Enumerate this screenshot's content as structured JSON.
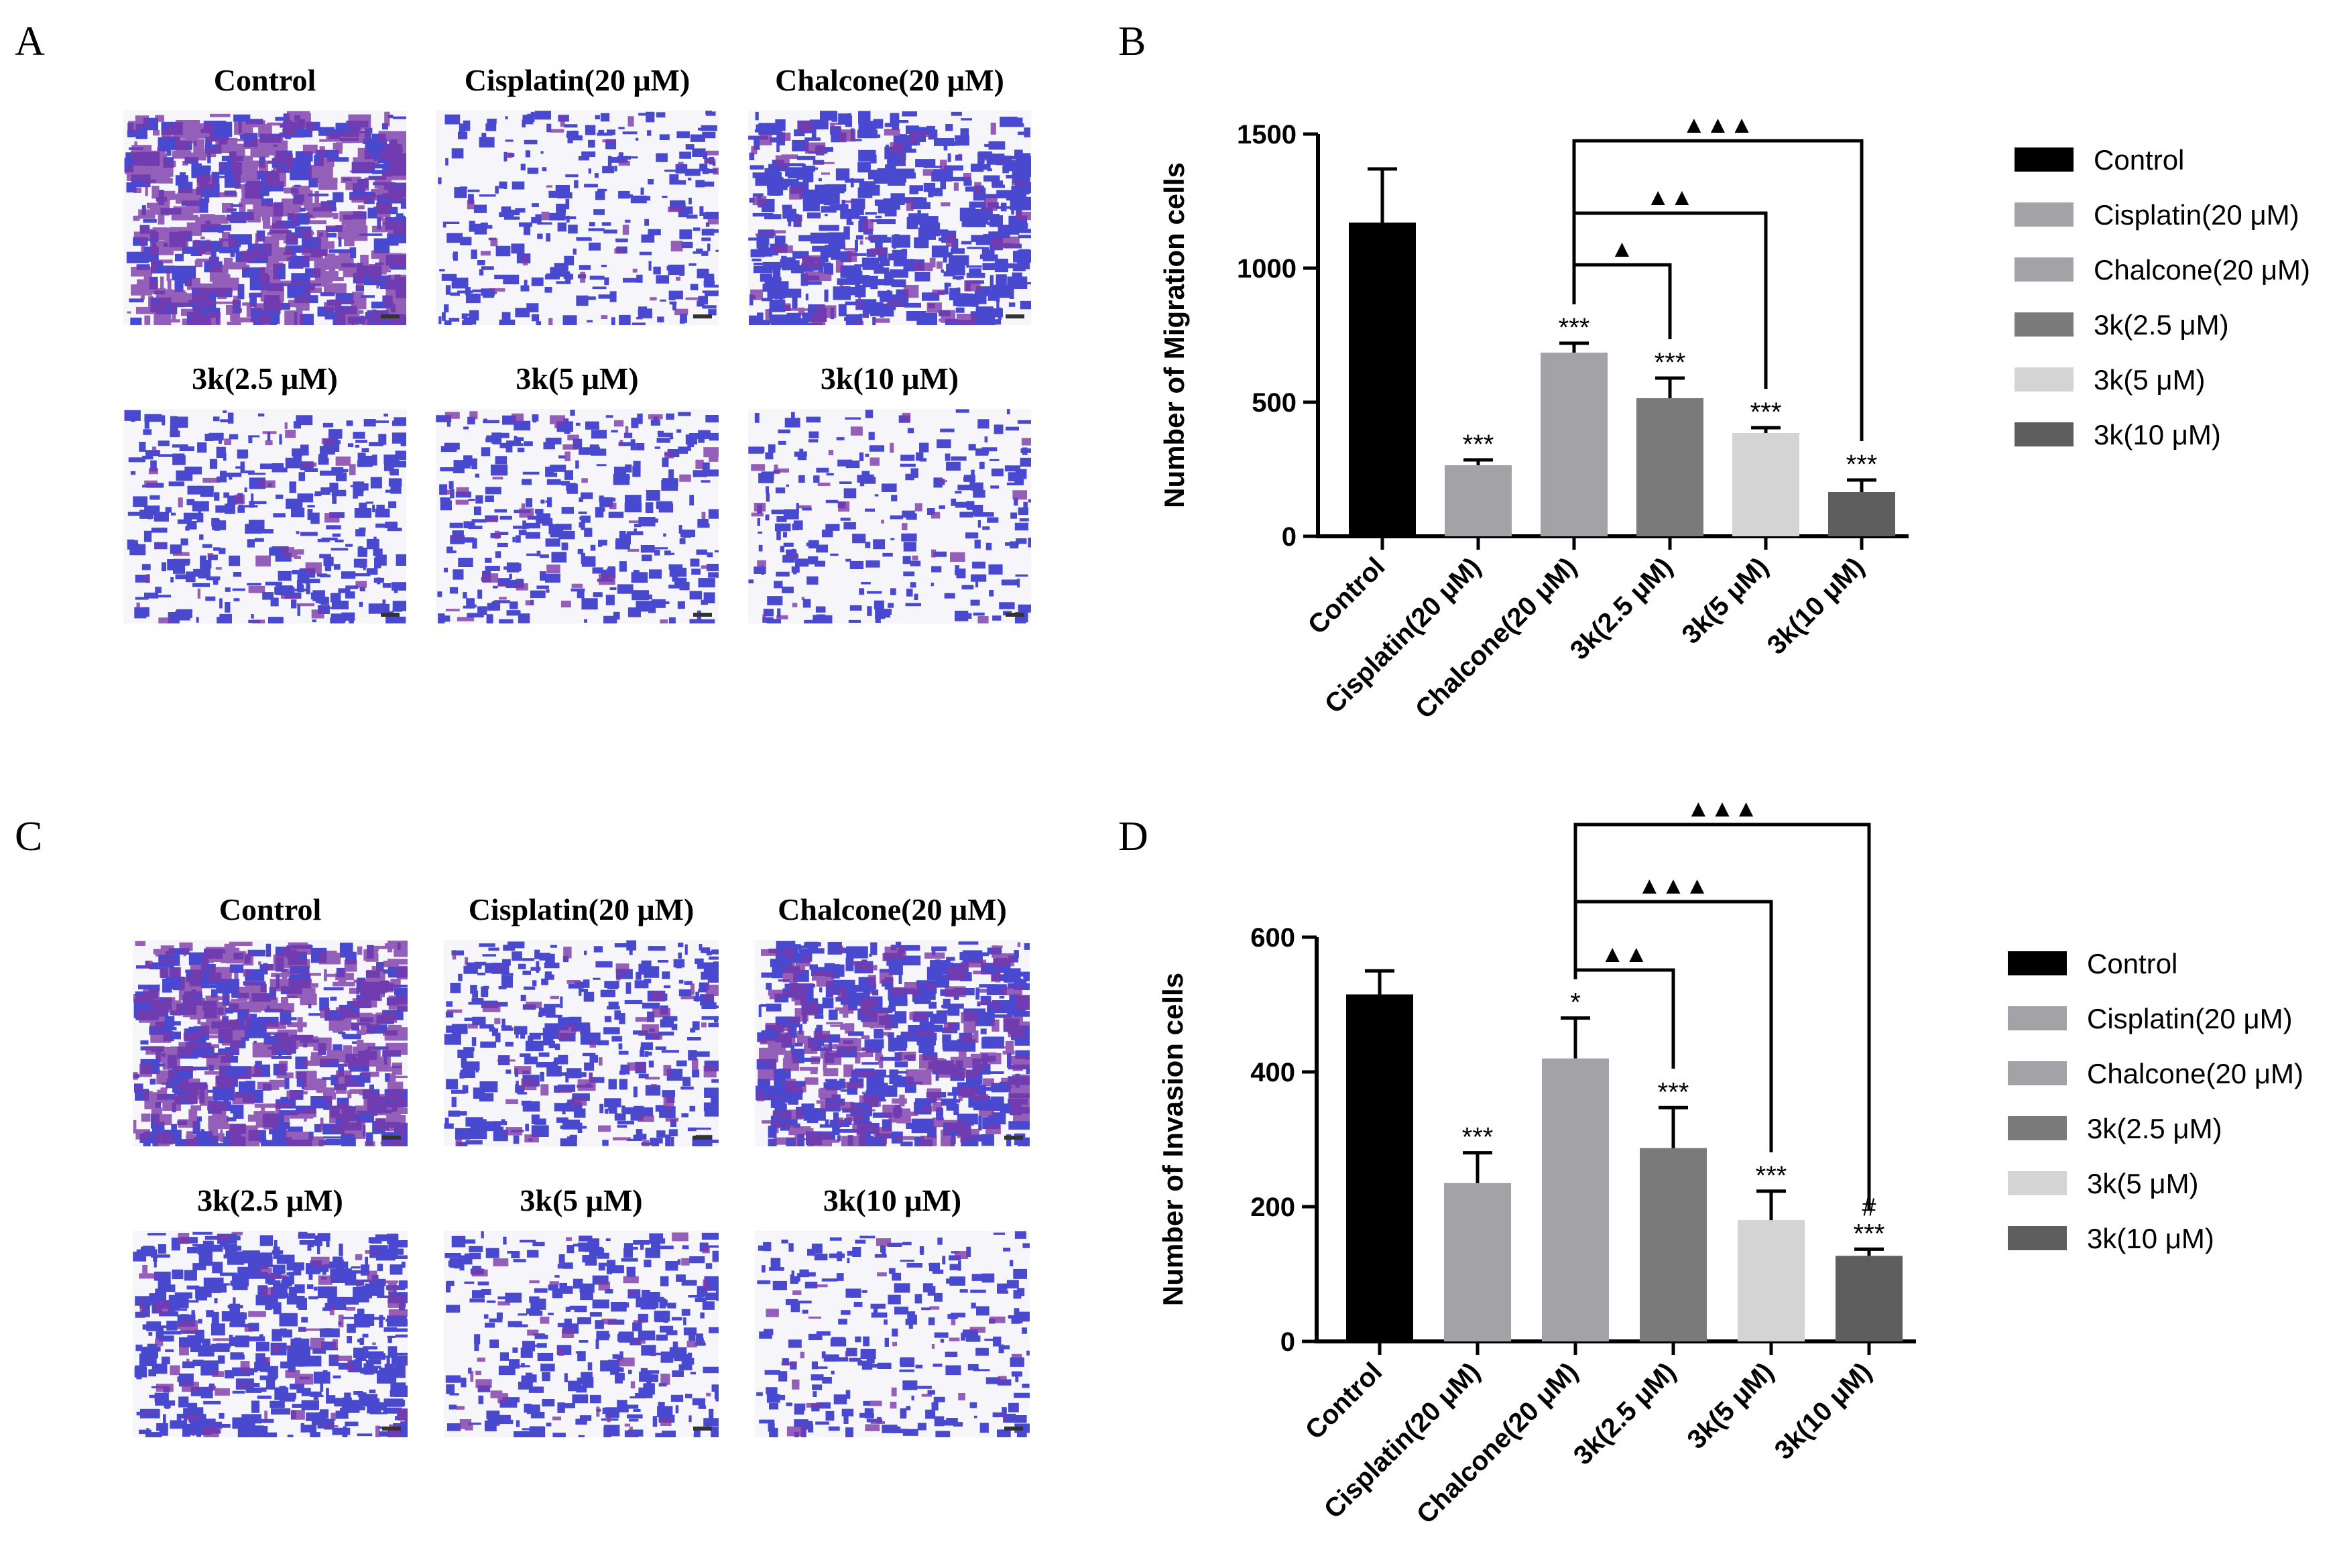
{
  "panels": {
    "A": {
      "letter": "A",
      "images": [
        {
          "label": "Control",
          "density": 0.85,
          "violet": 0.55
        },
        {
          "label": "Cisplatin(20 μM)",
          "density": 0.35,
          "violet": 0.1
        },
        {
          "label": "Chalcone(20 μM)",
          "density": 0.65,
          "violet": 0.15
        },
        {
          "label": "3k(2.5 μM)",
          "density": 0.42,
          "violet": 0.1
        },
        {
          "label": "3k(5 μM)",
          "density": 0.4,
          "violet": 0.1
        },
        {
          "label": "3k(10 μM)",
          "density": 0.3,
          "violet": 0.1
        }
      ]
    },
    "C": {
      "letter": "C",
      "images": [
        {
          "label": "Control",
          "density": 0.8,
          "violet": 0.45
        },
        {
          "label": "Cisplatin(20 μM)",
          "density": 0.45,
          "violet": 0.1
        },
        {
          "label": "Chalcone(20 μM)",
          "density": 0.75,
          "violet": 0.35
        },
        {
          "label": "3k(2.5 μM)",
          "density": 0.6,
          "violet": 0.1
        },
        {
          "label": "3k(5 μM)",
          "density": 0.4,
          "violet": 0.12
        },
        {
          "label": "3k(10 μM)",
          "density": 0.3,
          "violet": 0.1
        }
      ]
    }
  },
  "chart_data": [
    {
      "panel": "B",
      "type": "bar",
      "ylabel": "Number of Migration cells",
      "ylim": [
        0,
        1500
      ],
      "yticks": [
        0,
        500,
        1000,
        1500
      ],
      "categories": [
        "Control",
        "Cisplatin(20 μM)",
        "Chalcone(20 μM)",
        "3k(2.5 μM)",
        "3k(5 μM)",
        "3k(10 μM)"
      ],
      "values": [
        1170,
        265,
        685,
        515,
        385,
        165
      ],
      "errors": [
        200,
        20,
        35,
        75,
        20,
        45
      ],
      "annotations": [
        "",
        "***",
        "***",
        "***",
        "***",
        "***"
      ],
      "colors": [
        "#000000",
        "#a3a3a7",
        "#a3a3a7",
        "#7a7a7a",
        "#d4d4d4",
        "#5e5e5e"
      ],
      "brackets": [
        {
          "from": 2,
          "to": 3,
          "label": "▲"
        },
        {
          "from": 2,
          "to": 4,
          "label": "▲▲"
        },
        {
          "from": 2,
          "to": 5,
          "label": "▲▲▲"
        }
      ],
      "legend": [
        "Control",
        "Cisplatin(20 μM)",
        "Chalcone(20 μM)",
        "3k(2.5 μM)",
        "3k(5 μM)",
        "3k(10 μM)"
      ],
      "legend_position": "right"
    },
    {
      "panel": "D",
      "type": "bar",
      "ylabel": "Number of Invasion cells",
      "ylim": [
        0,
        600
      ],
      "yticks": [
        0,
        200,
        400,
        600
      ],
      "categories": [
        "Control",
        "Cisplatin(20 μM)",
        "Chalcone(20 μM)",
        "3k(2.5 μM)",
        "3k(5 μM)",
        "3k(10 μM)"
      ],
      "values": [
        515,
        235,
        420,
        287,
        180,
        127
      ],
      "errors": [
        35,
        45,
        60,
        60,
        43,
        10
      ],
      "annotations": [
        "",
        "***",
        "*",
        "***",
        "***",
        "***"
      ],
      "extra_annotations": [
        "",
        "",
        "",
        "",
        "",
        "#"
      ],
      "colors": [
        "#000000",
        "#a3a3a7",
        "#a3a3a7",
        "#7a7a7a",
        "#d4d4d4",
        "#5e5e5e"
      ],
      "brackets": [
        {
          "from": 2,
          "to": 3,
          "label": "▲▲"
        },
        {
          "from": 2,
          "to": 4,
          "label": "▲▲▲"
        },
        {
          "from": 2,
          "to": 5,
          "label": "▲▲▲"
        }
      ],
      "legend": [
        "Control",
        "Cisplatin(20 μM)",
        "Chalcone(20 μM)",
        "3k(2.5 μM)",
        "3k(5 μM)",
        "3k(10 μM)"
      ],
      "legend_position": "right"
    }
  ]
}
